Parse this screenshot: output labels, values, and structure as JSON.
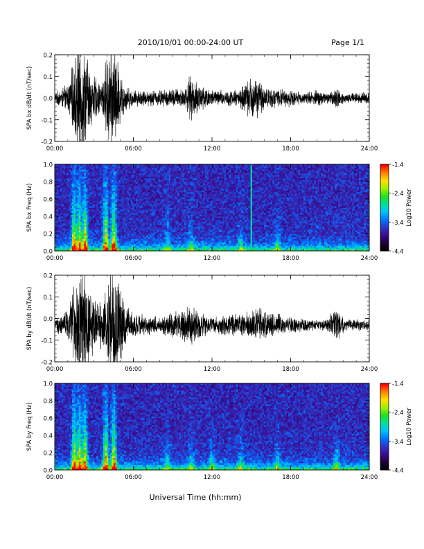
{
  "header": {
    "title": "2010/10/01   00:00-24:00 UT",
    "page": "Page 1/1"
  },
  "footer": {
    "xlabel": "Universal Time (hh:mm)"
  },
  "colors": {
    "trace": "#000000",
    "colormap": [
      "#000000",
      "#1a0030",
      "#3a0a8a",
      "#3030c0",
      "#0070ff",
      "#00c0ff",
      "#00e0a0",
      "#20e020",
      "#a0f000",
      "#ffe000",
      "#ff8000",
      "#ff0000"
    ]
  },
  "chart_data": [
    {
      "type": "line",
      "ylabel": "SPA bx dB/dt (nT/sec)",
      "xlim": [
        "00:00",
        "24:00"
      ],
      "xticks": [
        "00:00",
        "06:00",
        "12:00",
        "18:00",
        "24:00"
      ],
      "ylim": [
        -0.2,
        0.2
      ],
      "yticks": [
        "-0.2",
        "-0.1",
        "0.0",
        "0.1",
        "0.2"
      ],
      "yticks_value": [
        -0.2,
        -0.1,
        0.0,
        0.1,
        0.2
      ],
      "baseline": 0.0,
      "envelope": {
        "time_hr": [
          0,
          1,
          1.8,
          2.2,
          2.8,
          3.5,
          4.2,
          4.6,
          5.0,
          5.6,
          6,
          8,
          10,
          10.3,
          12,
          14,
          15.2,
          16,
          18,
          19,
          20,
          21,
          21.5,
          22,
          24
        ],
        "amplitude": [
          0.02,
          0.05,
          0.2,
          0.2,
          0.1,
          0.05,
          0.2,
          0.2,
          0.09,
          0.04,
          0.03,
          0.03,
          0.04,
          0.08,
          0.03,
          0.03,
          0.09,
          0.04,
          0.03,
          0.02,
          0.03,
          0.02,
          0.04,
          0.02,
          0.02
        ]
      }
    },
    {
      "type": "heatmap",
      "ylabel": "SPA bx Freq (Hz)",
      "xlim": [
        "00:00",
        "24:00"
      ],
      "xticks": [
        "00:00",
        "06:00",
        "12:00",
        "18:00",
        "24:00"
      ],
      "ylim": [
        0.0,
        1.0
      ],
      "yticks": [
        "0.0",
        "0.2",
        "0.4",
        "0.6",
        "0.8",
        "1.0"
      ],
      "yticks_value": [
        0.0,
        0.2,
        0.4,
        0.6,
        0.8,
        1.0
      ],
      "colorbar": {
        "label": "Log10 Power",
        "range": [
          -4.4,
          -1.4
        ],
        "ticks": [
          "-1.4",
          "-2.4",
          "-3.4",
          "-4.4"
        ],
        "ticks_value": [
          -1.4,
          -2.4,
          -3.4,
          -4.4
        ]
      },
      "features": {
        "broadband_bursts_hr": [
          1.5,
          1.9,
          2.3,
          3.9,
          4.5,
          8.6,
          10.4,
          14.2,
          17.0
        ],
        "narrowband_line": {
          "time_hr": 15.0,
          "freq_range_hz": [
            0.0,
            1.0
          ]
        }
      }
    },
    {
      "type": "line",
      "ylabel": "SPA by dB/dt (nT/sec)",
      "xlim": [
        "00:00",
        "24:00"
      ],
      "xticks": [
        "00:00",
        "06:00",
        "12:00",
        "18:00",
        "24:00"
      ],
      "ylim": [
        -0.2,
        0.2
      ],
      "yticks": [
        "-0.2",
        "-0.1",
        "0.0",
        "0.1",
        "0.2"
      ],
      "yticks_value": [
        -0.2,
        -0.1,
        0.0,
        0.1,
        0.2
      ],
      "baseline": -0.03,
      "envelope": {
        "time_hr": [
          0,
          1,
          1.8,
          2.4,
          3.0,
          3.6,
          4.1,
          4.7,
          5.2,
          5.8,
          6.5,
          8,
          10.4,
          12,
          14,
          15.6,
          17,
          18,
          19.5,
          20.5,
          21.5,
          22.2,
          24
        ],
        "amplitude": [
          0.02,
          0.06,
          0.2,
          0.2,
          0.1,
          0.08,
          0.2,
          0.2,
          0.1,
          0.05,
          0.04,
          0.03,
          0.07,
          0.03,
          0.04,
          0.06,
          0.04,
          0.03,
          0.02,
          0.02,
          0.06,
          0.02,
          0.02
        ]
      }
    },
    {
      "type": "heatmap",
      "ylabel": "SPA by Freq (Hz)",
      "xlim": [
        "00:00",
        "24:00"
      ],
      "xticks": [
        "00:00",
        "06:00",
        "12:00",
        "18:00",
        "24:00"
      ],
      "ylim": [
        0.0,
        1.0
      ],
      "yticks": [
        "0.0",
        "0.2",
        "0.4",
        "0.6",
        "0.8",
        "1.0"
      ],
      "yticks_value": [
        0.0,
        0.2,
        0.4,
        0.6,
        0.8,
        1.0
      ],
      "colorbar": {
        "label": "Log10 Power",
        "range": [
          -4.4,
          -1.4
        ],
        "ticks": [
          "-1.4",
          "-2.4",
          "-3.4",
          "-4.4"
        ],
        "ticks_value": [
          -1.4,
          -2.4,
          -3.4,
          -4.4
        ]
      },
      "features": {
        "broadband_bursts_hr": [
          1.5,
          1.9,
          2.3,
          3.9,
          4.5,
          8.6,
          10.4,
          12.0,
          14.2,
          17.0,
          21.5
        ]
      }
    }
  ]
}
